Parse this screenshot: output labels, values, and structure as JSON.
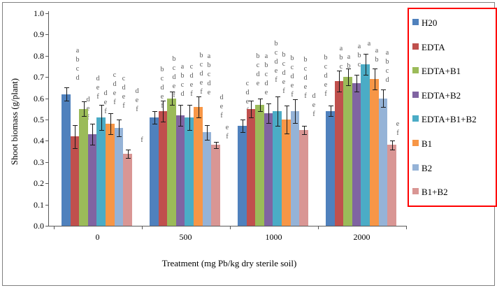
{
  "chart_data": {
    "type": "bar",
    "title": "",
    "xlabel": "Treatment (mg Pb/kg dry sterile soil)",
    "ylabel": "Shoot biomass (g/plant)",
    "ylim": [
      0.0,
      1.0
    ],
    "ytick_step": 0.1,
    "grid": false,
    "legend_position": "right",
    "legend_border_color": "#ff0000",
    "categories": [
      "0",
      "500",
      "1000",
      "2000"
    ],
    "series": [
      {
        "name": "H20",
        "color": "#4F81BD",
        "values": [
          0.62,
          0.51,
          0.47,
          0.54
        ],
        "errors": [
          0.03,
          0.03,
          0.03,
          0.025
        ],
        "sig_letters": [
          "a b c d",
          "b c d e f",
          "c d e f",
          "b c d e f"
        ],
        "letter_x": [
          110,
          231,
          353,
          465
        ],
        "letter_y": [
          70,
          97,
          117,
          80
        ]
      },
      {
        "name": "EDTA",
        "color": "#C0504D",
        "values": [
          0.42,
          0.54,
          0.55,
          0.68
        ],
        "errors": [
          0.055,
          0.05,
          0.04,
          0.05
        ],
        "sig_letters": [
          "d e f",
          "b c d e f",
          "b c d e",
          "a b c"
        ],
        "letter_x": [
          125,
          248,
          368,
          487
        ],
        "letter_y": [
          140,
          82,
          78,
          67
        ]
      },
      {
        "name": "EDTA+B1",
        "color": "#9BBB59",
        "values": [
          0.55,
          0.6,
          0.57,
          0.7
        ],
        "errors": [
          0.035,
          0.03,
          0.03,
          0.04
        ],
        "sig_letters": [
          "d e f",
          "a b c d",
          "a b c d e",
          "a b"
        ],
        "letter_x": [
          139,
          260,
          380,
          498
        ],
        "letter_y": [
          110,
          93,
          78,
          79
        ]
      },
      {
        "name": "EDTA+B2",
        "color": "#8064A2",
        "values": [
          0.43,
          0.52,
          0.53,
          0.67
        ],
        "errors": [
          0.05,
          0.05,
          0.045,
          0.04
        ],
        "sig_letters": [
          "d e f",
          "c d e f",
          "b c d e f",
          "a b c"
        ],
        "letter_x": [
          150,
          273,
          394,
          513
        ],
        "letter_y": [
          131,
          93,
          60,
          64
        ]
      },
      {
        "name": "EDTA+B1+B2",
        "color": "#4BACC6",
        "values": [
          0.51,
          0.51,
          0.54,
          0.76
        ],
        "errors": [
          0.06,
          0.06,
          0.07,
          0.05
        ],
        "sig_letters": [
          "c d e f",
          "b c d e f",
          "b c d e f",
          "a"
        ],
        "letter_x": [
          163,
          287,
          405,
          527
        ],
        "letter_y": [
          105,
          77,
          76,
          60
        ]
      },
      {
        "name": "B1",
        "color": "#F79646",
        "values": [
          0.48,
          0.56,
          0.5,
          0.69
        ],
        "errors": [
          0.05,
          0.05,
          0.065,
          0.05
        ],
        "sig_letters": [
          "c d e f",
          "a b c d e",
          "b c d e f",
          "a b"
        ],
        "letter_x": [
          176,
          298,
          417,
          538
        ],
        "letter_y": [
          110,
          78,
          81,
          70
        ]
      },
      {
        "name": "B2",
        "color": "#95B3D7",
        "values": [
          0.46,
          0.44,
          0.54,
          0.6
        ],
        "errors": [
          0.04,
          0.035,
          0.055,
          0.04
        ],
        "sig_letters": [
          "d e f",
          "d e f",
          "b c d e f",
          "a b c d"
        ],
        "letter_x": [
          195,
          316,
          436,
          553
        ],
        "letter_y": [
          128,
          137,
          83,
          73
        ]
      },
      {
        "name": "B1+B2",
        "color": "#D99694",
        "values": [
          0.34,
          0.38,
          0.45,
          0.38
        ],
        "errors": [
          0.02,
          0.015,
          0.02,
          0.02
        ],
        "sig_letters": [
          "f",
          "e f",
          "d e f",
          "e f"
        ],
        "letter_x": [
          202,
          324,
          448,
          568
        ],
        "letter_y": [
          198,
          180,
          135,
          175
        ]
      }
    ]
  }
}
